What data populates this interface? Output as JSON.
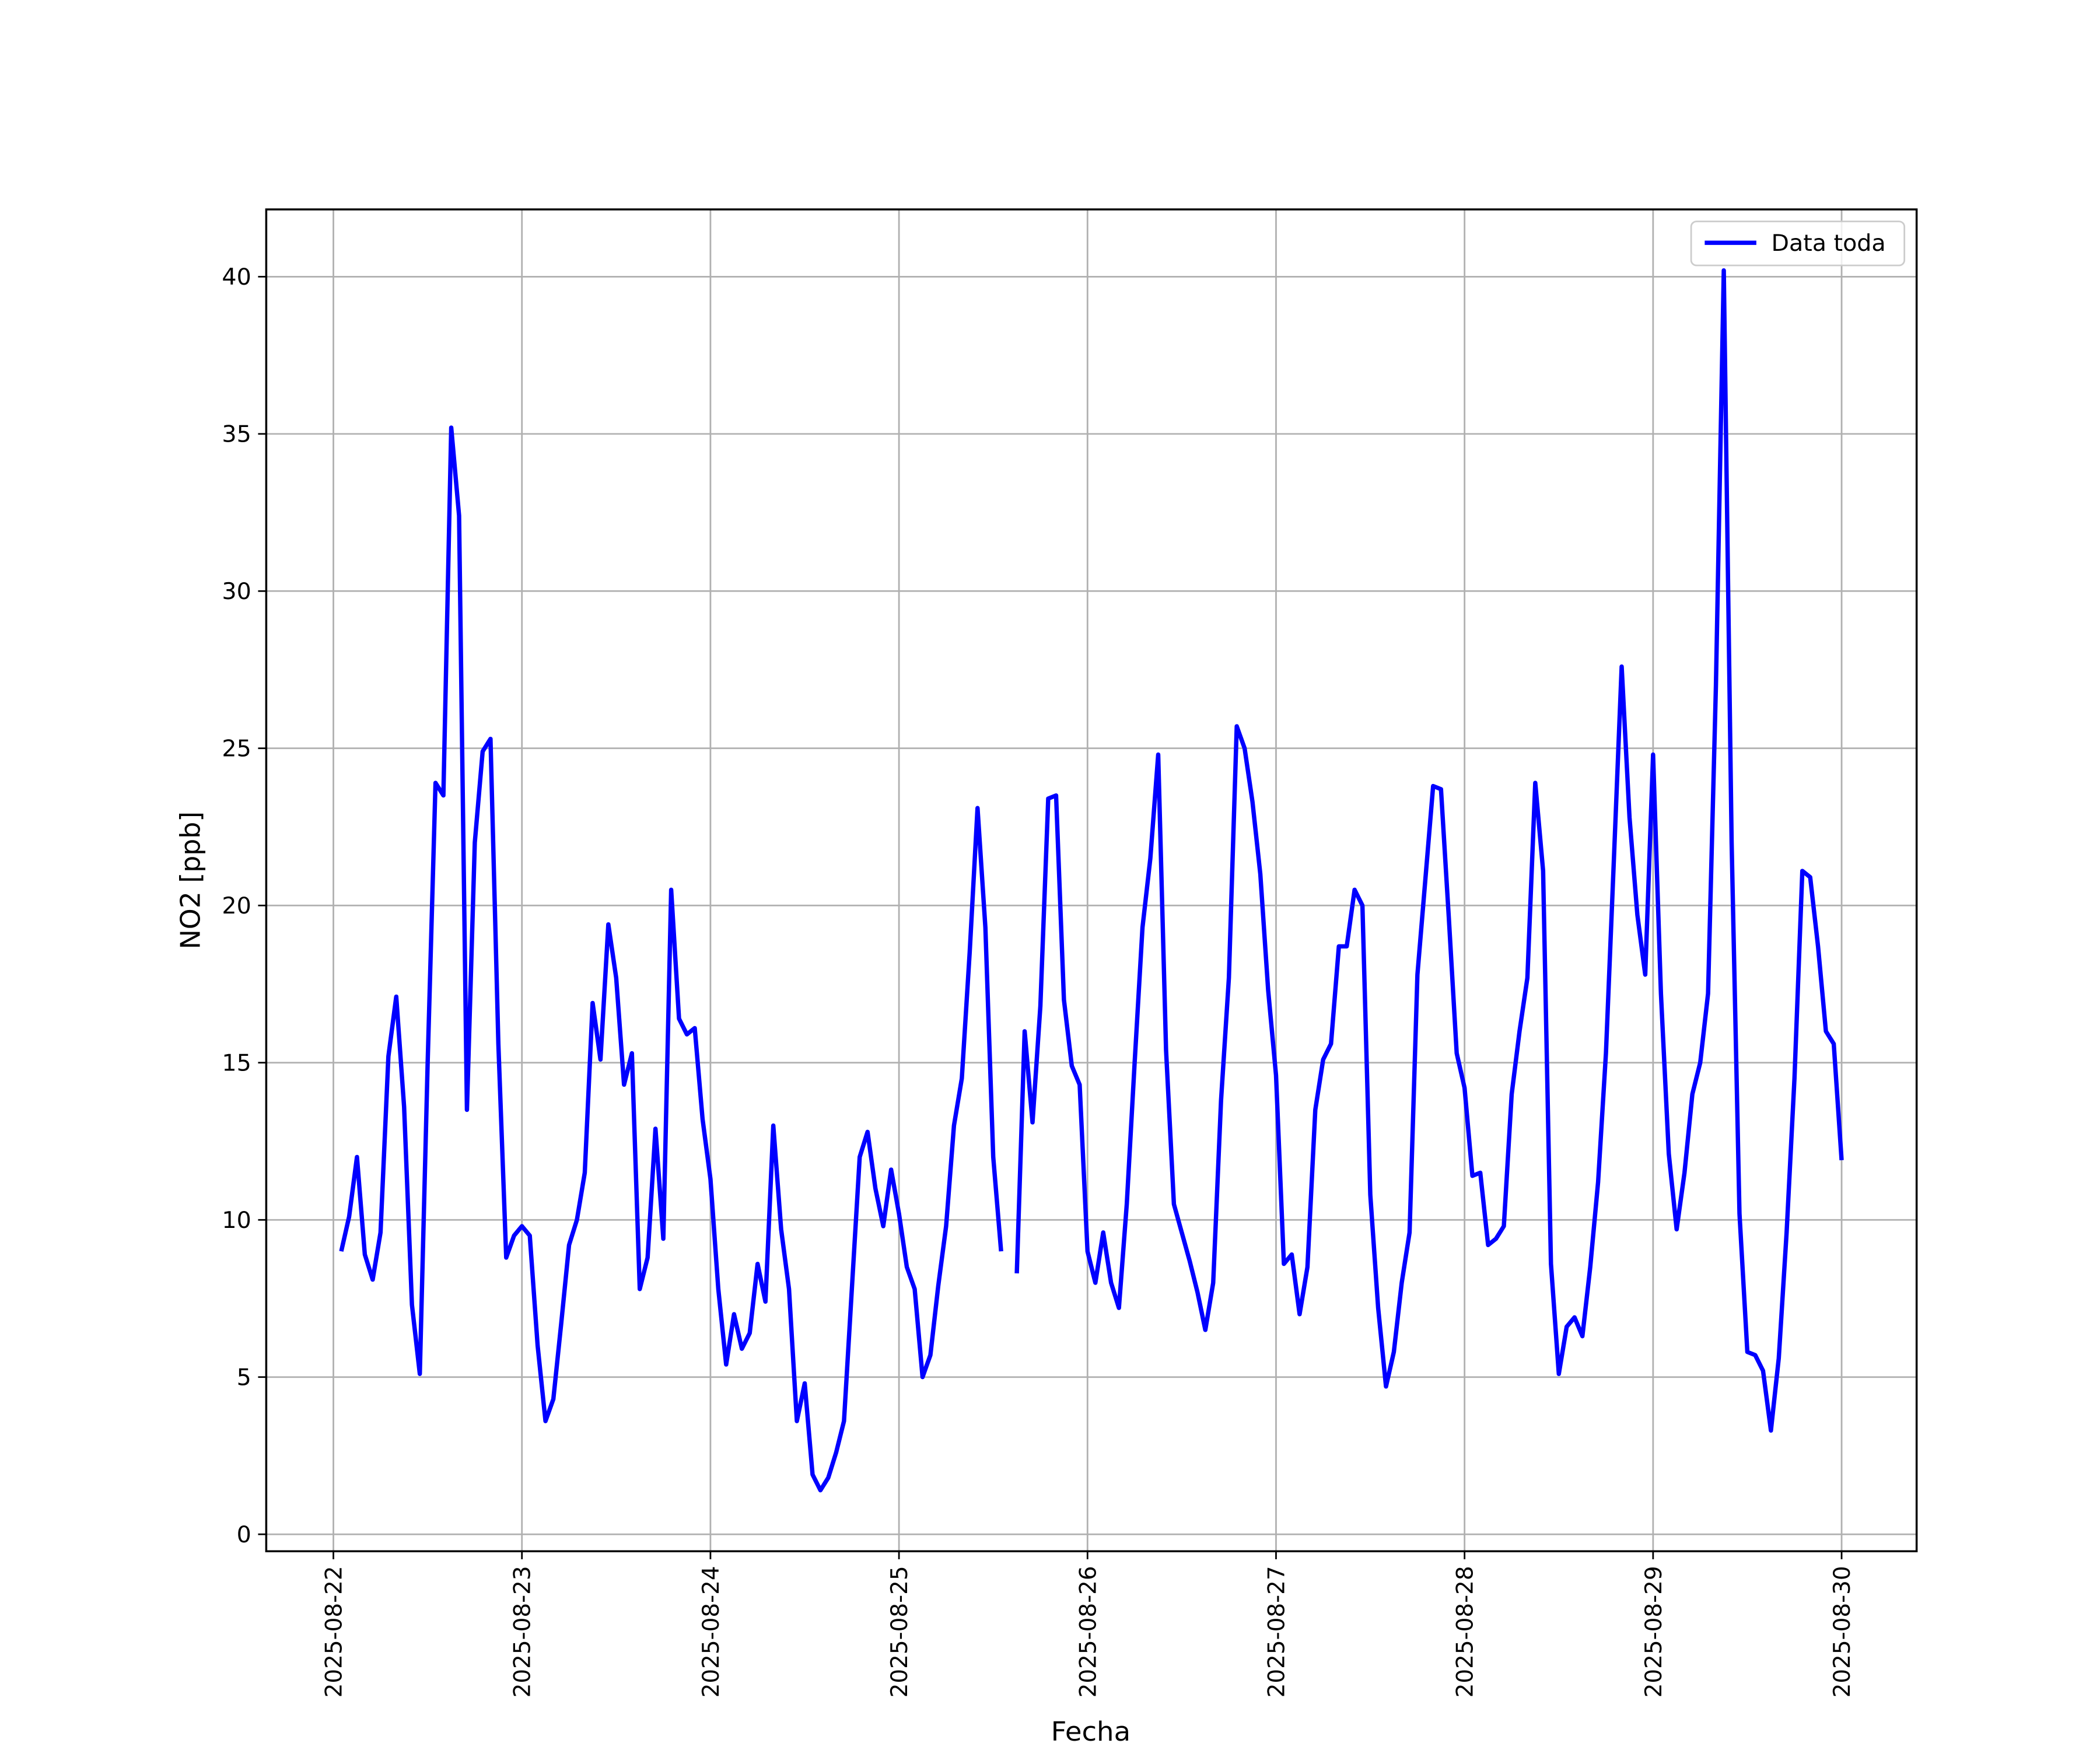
{
  "chart_data": {
    "type": "line",
    "xlabel": "Fecha",
    "ylabel": "NO2 [ppb]",
    "xlim": [
      "2025-08-21 15:27",
      "2025-08-30 09:33"
    ],
    "xticks": [
      "2025-08-22",
      "2025-08-23",
      "2025-08-24",
      "2025-08-25",
      "2025-08-26",
      "2025-08-27",
      "2025-08-28",
      "2025-08-29",
      "2025-08-30"
    ],
    "ylim": [
      -0.54,
      42.14
    ],
    "yticks": [
      0,
      5,
      10,
      15,
      20,
      25,
      30,
      35,
      40
    ],
    "grid": true,
    "legend": "upper right",
    "series": [
      {
        "name": "Data toda",
        "color": "#0000ff",
        "x": [
          "2025-08-22 01:00",
          "2025-08-22 02:00",
          "2025-08-22 03:00",
          "2025-08-22 04:00",
          "2025-08-22 05:00",
          "2025-08-22 06:00",
          "2025-08-22 07:00",
          "2025-08-22 08:00",
          "2025-08-22 09:00",
          "2025-08-22 10:00",
          "2025-08-22 11:00",
          "2025-08-22 12:00",
          "2025-08-22 13:00",
          "2025-08-22 14:00",
          "2025-08-22 15:00",
          "2025-08-22 16:00",
          "2025-08-22 17:00",
          "2025-08-22 18:00",
          "2025-08-22 19:00",
          "2025-08-22 20:00",
          "2025-08-22 21:00",
          "2025-08-22 22:00",
          "2025-08-22 23:00",
          "2025-08-23 00:00",
          "2025-08-23 01:00",
          "2025-08-23 02:00",
          "2025-08-23 03:00",
          "2025-08-23 04:00",
          "2025-08-23 05:00",
          "2025-08-23 06:00",
          "2025-08-23 07:00",
          "2025-08-23 08:00",
          "2025-08-23 09:00",
          "2025-08-23 10:00",
          "2025-08-23 11:00",
          "2025-08-23 12:00",
          "2025-08-23 13:00",
          "2025-08-23 14:00",
          "2025-08-23 15:00",
          "2025-08-23 16:00",
          "2025-08-23 17:00",
          "2025-08-23 18:00",
          "2025-08-23 19:00",
          "2025-08-23 20:00",
          "2025-08-23 21:00",
          "2025-08-23 22:00",
          "2025-08-23 23:00",
          "2025-08-24 00:00",
          "2025-08-24 01:00",
          "2025-08-24 02:00",
          "2025-08-24 03:00",
          "2025-08-24 04:00",
          "2025-08-24 05:00",
          "2025-08-24 06:00",
          "2025-08-24 07:00",
          "2025-08-24 08:00",
          "2025-08-24 09:00",
          "2025-08-24 10:00",
          "2025-08-24 11:00",
          "2025-08-24 12:00",
          "2025-08-24 13:00",
          "2025-08-24 14:00",
          "2025-08-24 15:00",
          "2025-08-24 16:00",
          "2025-08-24 17:00",
          "2025-08-24 18:00",
          "2025-08-24 19:00",
          "2025-08-24 20:00",
          "2025-08-24 21:00",
          "2025-08-24 22:00",
          "2025-08-24 23:00",
          "2025-08-25 00:00",
          "2025-08-25 01:00",
          "2025-08-25 02:00",
          "2025-08-25 03:00",
          "2025-08-25 04:00",
          "2025-08-25 05:00",
          "2025-08-25 06:00",
          "2025-08-25 07:00",
          "2025-08-25 08:00",
          "2025-08-25 09:00",
          "2025-08-25 10:00",
          "2025-08-25 11:00",
          "2025-08-25 12:00",
          "2025-08-25 13:00",
          "2025-08-25 14:00",
          "2025-08-25 15:00",
          "2025-08-25 16:00",
          "2025-08-25 17:00",
          "2025-08-25 18:00",
          "2025-08-25 19:00",
          "2025-08-25 20:00",
          "2025-08-25 21:00",
          "2025-08-25 22:00",
          "2025-08-25 23:00",
          "2025-08-26 00:00",
          "2025-08-26 01:00",
          "2025-08-26 02:00",
          "2025-08-26 03:00",
          "2025-08-26 04:00",
          "2025-08-26 05:00",
          "2025-08-26 06:00",
          "2025-08-26 07:00",
          "2025-08-26 08:00",
          "2025-08-26 09:00",
          "2025-08-26 10:00",
          "2025-08-26 11:00",
          "2025-08-26 12:00",
          "2025-08-26 13:00",
          "2025-08-26 14:00",
          "2025-08-26 15:00",
          "2025-08-26 16:00",
          "2025-08-26 17:00",
          "2025-08-26 18:00",
          "2025-08-26 19:00",
          "2025-08-26 20:00",
          "2025-08-26 21:00",
          "2025-08-26 22:00",
          "2025-08-26 23:00",
          "2025-08-27 00:00",
          "2025-08-27 01:00",
          "2025-08-27 02:00",
          "2025-08-27 03:00",
          "2025-08-27 04:00",
          "2025-08-27 05:00",
          "2025-08-27 06:00",
          "2025-08-27 07:00",
          "2025-08-27 08:00",
          "2025-08-27 09:00",
          "2025-08-27 10:00",
          "2025-08-27 11:00",
          "2025-08-27 12:00",
          "2025-08-27 13:00",
          "2025-08-27 14:00",
          "2025-08-27 15:00",
          "2025-08-27 16:00",
          "2025-08-27 17:00",
          "2025-08-27 18:00",
          "2025-08-27 19:00",
          "2025-08-27 20:00",
          "2025-08-27 21:00",
          "2025-08-27 22:00",
          "2025-08-27 23:00",
          "2025-08-28 00:00",
          "2025-08-28 01:00",
          "2025-08-28 02:00",
          "2025-08-28 03:00",
          "2025-08-28 04:00",
          "2025-08-28 05:00",
          "2025-08-28 06:00",
          "2025-08-28 07:00",
          "2025-08-28 08:00",
          "2025-08-28 09:00",
          "2025-08-28 10:00",
          "2025-08-28 11:00",
          "2025-08-28 12:00",
          "2025-08-28 13:00",
          "2025-08-28 14:00",
          "2025-08-28 15:00",
          "2025-08-28 16:00",
          "2025-08-28 17:00",
          "2025-08-28 18:00",
          "2025-08-28 19:00",
          "2025-08-28 20:00",
          "2025-08-28 21:00",
          "2025-08-28 22:00",
          "2025-08-28 23:00",
          "2025-08-29 00:00",
          "2025-08-29 01:00",
          "2025-08-29 02:00",
          "2025-08-29 03:00",
          "2025-08-29 04:00",
          "2025-08-29 05:00",
          "2025-08-29 06:00",
          "2025-08-29 07:00",
          "2025-08-29 08:00",
          "2025-08-29 09:00",
          "2025-08-29 10:00",
          "2025-08-29 11:00",
          "2025-08-29 12:00",
          "2025-08-29 13:00",
          "2025-08-29 14:00",
          "2025-08-29 15:00",
          "2025-08-29 16:00",
          "2025-08-29 17:00",
          "2025-08-29 18:00",
          "2025-08-29 19:00",
          "2025-08-29 20:00",
          "2025-08-29 21:00",
          "2025-08-29 22:00",
          "2025-08-29 23:00",
          "2025-08-30 00:00"
        ],
        "values": [
          9.0,
          10.1,
          12.0,
          8.9,
          8.1,
          9.6,
          15.2,
          17.1,
          13.6,
          7.3,
          5.1,
          15.0,
          23.9,
          23.5,
          35.2,
          32.4,
          13.5,
          22.0,
          24.9,
          25.3,
          15.6,
          8.8,
          9.5,
          9.8,
          9.5,
          6.0,
          3.6,
          4.3,
          6.7,
          9.2,
          10.0,
          11.5,
          16.9,
          15.1,
          19.4,
          17.7,
          14.3,
          15.3,
          7.8,
          8.8,
          12.9,
          9.4,
          20.5,
          16.4,
          15.9,
          16.1,
          13.2,
          11.3,
          7.8,
          5.4,
          7.0,
          5.9,
          6.4,
          8.6,
          7.4,
          13.0,
          9.7,
          7.8,
          3.6,
          4.8,
          1.9,
          1.4,
          1.8,
          2.6,
          3.6,
          7.8,
          12.0,
          12.8,
          11.0,
          9.8,
          11.6,
          10.2,
          8.5,
          7.8,
          5.0,
          5.7,
          7.9,
          9.8,
          13.0,
          14.5,
          18.5,
          23.1,
          19.3,
          12.0,
          9.0,
          null,
          8.3,
          16.0,
          13.1,
          16.8,
          23.4,
          23.5,
          17.0,
          14.9,
          14.3,
          9.0,
          8.0,
          9.6,
          8.0,
          7.2,
          10.5,
          15.0,
          19.3,
          21.5,
          24.8,
          15.4,
          10.5,
          9.6,
          8.7,
          7.7,
          6.5,
          8.0,
          13.8,
          17.7,
          25.7,
          25.0,
          23.3,
          21.0,
          17.3,
          14.6,
          8.6,
          8.9,
          7.0,
          8.5,
          13.5,
          15.1,
          15.6,
          18.7,
          18.7,
          20.5,
          20.0,
          10.8,
          7.2,
          4.7,
          5.8,
          8.0,
          9.6,
          17.8,
          20.8,
          23.8,
          23.7,
          19.6,
          15.3,
          14.2,
          11.4,
          11.5,
          9.2,
          9.4,
          9.8,
          14.0,
          16.0,
          17.7,
          23.9,
          21.1,
          8.6,
          5.1,
          6.6,
          6.9,
          6.3,
          8.5,
          11.2,
          15.3,
          21.4,
          27.6,
          22.8,
          19.7,
          17.8,
          24.8,
          17.2,
          12.1,
          9.7,
          11.5,
          14.0,
          15.0,
          17.2,
          27.0,
          40.2,
          22.0,
          10.2,
          5.8,
          5.7,
          5.2,
          3.3,
          5.6,
          9.6,
          14.5,
          21.1,
          20.9,
          18.7,
          16.0,
          15.6,
          11.9
        ]
      }
    ]
  }
}
